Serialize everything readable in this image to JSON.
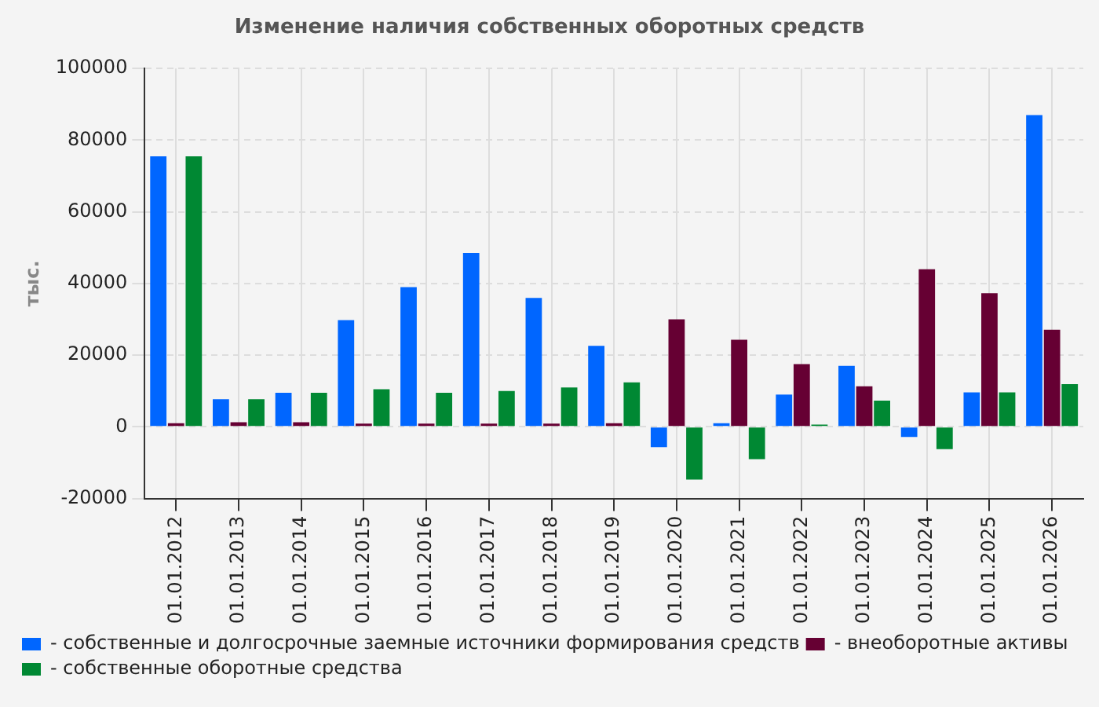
{
  "chart_data": {
    "type": "bar",
    "title": "Изменение наличия собственных оборотных средств",
    "ylabel": "тыс.",
    "categories": [
      "01.01.2012",
      "01.01.2013",
      "01.01.2014",
      "01.01.2015",
      "01.01.2016",
      "01.01.2017",
      "01.01.2018",
      "01.01.2019",
      "01.01.2020",
      "01.01.2021",
      "01.01.2022",
      "01.01.2023",
      "01.01.2024",
      "01.01.2025",
      "01.01.2026"
    ],
    "series": [
      {
        "name": "- собственные и долгосрочные заемные источники формирования средств",
        "color": "#0066ff",
        "values": [
          75500,
          7700,
          9500,
          29800,
          39000,
          48500,
          36000,
          22600,
          -5700,
          1000,
          9000,
          17000,
          -2800,
          9600,
          87000
        ]
      },
      {
        "name": "- внеоборотные активы",
        "color": "#660033",
        "values": [
          1000,
          1300,
          1300,
          900,
          900,
          900,
          900,
          1000,
          30000,
          24300,
          17500,
          11300,
          44000,
          37300,
          27100
        ]
      },
      {
        "name": "- собственные оборотные средства",
        "color": "#008833",
        "values": [
          75500,
          7700,
          9500,
          10500,
          9500,
          10000,
          11000,
          12400,
          -14700,
          -9000,
          600,
          7300,
          -6200,
          9600,
          11900
        ]
      }
    ],
    "ylim": [
      -20000,
      100000
    ],
    "yticks": [
      -20000,
      0,
      20000,
      40000,
      60000,
      80000,
      100000
    ],
    "grid": true,
    "legend": "bottom"
  }
}
